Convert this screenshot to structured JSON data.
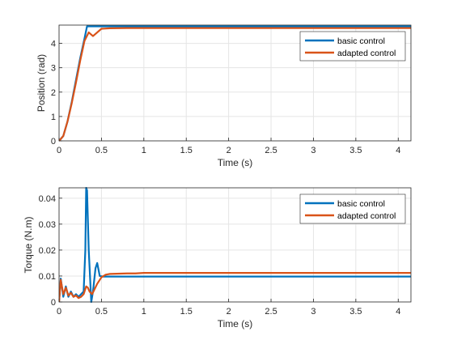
{
  "colors": {
    "basic": "#0072BD",
    "adapted": "#D95319",
    "grid": "#e5e5e5",
    "axis": "#262626"
  },
  "chart_data": [
    {
      "type": "line",
      "xlabel": "Time (s)",
      "ylabel": "Position (rad)",
      "xlim": [
        0,
        4.15
      ],
      "ylim": [
        0,
        4.75
      ],
      "xticks": [
        0,
        0.5,
        1,
        1.5,
        2,
        2.5,
        3,
        3.5,
        4
      ],
      "xtick_labels": [
        "0",
        "0.5",
        "1",
        "1.5",
        "2",
        "2.5",
        "3",
        "3.5",
        "4"
      ],
      "yticks": [
        0,
        1,
        2,
        3,
        4
      ],
      "ytick_labels": [
        "0",
        "1",
        "2",
        "3",
        "4"
      ],
      "grid": true,
      "legend": "top-right",
      "series": [
        {
          "name": "basic control",
          "color": "#0072BD",
          "points": [
            [
              0,
              0
            ],
            [
              0.05,
              0.2
            ],
            [
              0.1,
              0.8
            ],
            [
              0.15,
              1.6
            ],
            [
              0.2,
              2.5
            ],
            [
              0.25,
              3.4
            ],
            [
              0.3,
              4.2
            ],
            [
              0.33,
              4.7
            ],
            [
              0.4,
              4.7
            ],
            [
              0.6,
              4.7
            ],
            [
              1,
              4.7
            ],
            [
              2,
              4.7
            ],
            [
              3,
              4.7
            ],
            [
              4.15,
              4.7
            ]
          ]
        },
        {
          "name": "adapted control",
          "color": "#D95319",
          "points": [
            [
              0,
              0
            ],
            [
              0.05,
              0.2
            ],
            [
              0.1,
              0.8
            ],
            [
              0.15,
              1.55
            ],
            [
              0.2,
              2.4
            ],
            [
              0.25,
              3.3
            ],
            [
              0.3,
              4.1
            ],
            [
              0.35,
              4.45
            ],
            [
              0.4,
              4.3
            ],
            [
              0.45,
              4.45
            ],
            [
              0.5,
              4.6
            ],
            [
              0.6,
              4.62
            ],
            [
              0.8,
              4.63
            ],
            [
              1,
              4.63
            ],
            [
              2,
              4.63
            ],
            [
              3,
              4.63
            ],
            [
              4.15,
              4.63
            ]
          ]
        }
      ]
    },
    {
      "type": "line",
      "xlabel": "Time (s)",
      "ylabel": "Torque (N.m)",
      "xlim": [
        0,
        4.15
      ],
      "ylim": [
        0,
        0.044
      ],
      "xticks": [
        0,
        0.5,
        1,
        1.5,
        2,
        2.5,
        3,
        3.5,
        4
      ],
      "xtick_labels": [
        "0",
        "0.5",
        "1",
        "1.5",
        "2",
        "2.5",
        "3",
        "3.5",
        "4"
      ],
      "yticks": [
        0,
        0.01,
        0.02,
        0.03,
        0.04
      ],
      "ytick_labels": [
        "0",
        "0.01",
        "0.02",
        "0.03",
        "0.04"
      ],
      "grid": true,
      "legend": "top-right",
      "series": [
        {
          "name": "basic control",
          "color": "#0072BD",
          "points": [
            [
              0,
              0
            ],
            [
              0.02,
              0.009
            ],
            [
              0.05,
              0.002
            ],
            [
              0.08,
              0.006
            ],
            [
              0.11,
              0.002
            ],
            [
              0.14,
              0.004
            ],
            [
              0.17,
              0.002
            ],
            [
              0.2,
              0.003
            ],
            [
              0.23,
              0.002
            ],
            [
              0.26,
              0.003
            ],
            [
              0.29,
              0.004
            ],
            [
              0.31,
              0.02
            ],
            [
              0.32,
              0.044
            ],
            [
              0.33,
              0.043
            ],
            [
              0.35,
              0.02
            ],
            [
              0.38,
              0
            ],
            [
              0.4,
              0.004
            ],
            [
              0.43,
              0.013
            ],
            [
              0.45,
              0.015
            ],
            [
              0.48,
              0.01
            ],
            [
              0.52,
              0.0098
            ],
            [
              0.6,
              0.0098
            ],
            [
              1,
              0.0098
            ],
            [
              2,
              0.0098
            ],
            [
              3,
              0.0098
            ],
            [
              4.15,
              0.0098
            ]
          ]
        },
        {
          "name": "adapted control",
          "color": "#D95319",
          "points": [
            [
              0,
              0
            ],
            [
              0.02,
              0.0085
            ],
            [
              0.05,
              0.003
            ],
            [
              0.08,
              0.0055
            ],
            [
              0.11,
              0.0025
            ],
            [
              0.14,
              0.0035
            ],
            [
              0.17,
              0.002
            ],
            [
              0.2,
              0.0025
            ],
            [
              0.23,
              0.0015
            ],
            [
              0.26,
              0.002
            ],
            [
              0.29,
              0.003
            ],
            [
              0.32,
              0.006
            ],
            [
              0.34,
              0.0055
            ],
            [
              0.36,
              0.004
            ],
            [
              0.39,
              0.003
            ],
            [
              0.42,
              0.005
            ],
            [
              0.45,
              0.007
            ],
            [
              0.5,
              0.0095
            ],
            [
              0.55,
              0.0105
            ],
            [
              0.6,
              0.0108
            ],
            [
              0.8,
              0.011
            ],
            [
              0.9,
              0.011
            ],
            [
              1,
              0.0112
            ],
            [
              2,
              0.0112
            ],
            [
              3,
              0.0112
            ],
            [
              4.15,
              0.0112
            ]
          ]
        }
      ]
    }
  ]
}
